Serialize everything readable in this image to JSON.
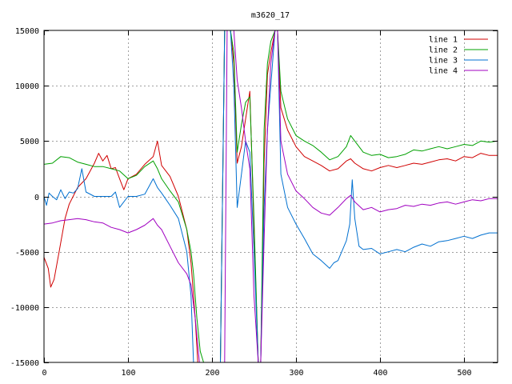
{
  "chart_data": {
    "type": "line",
    "title": "m3620_17",
    "xlim": [
      0,
      540
    ],
    "ylim": [
      -15000,
      15000
    ],
    "xticks": [
      0,
      100,
      200,
      300,
      400,
      500
    ],
    "yticks": [
      -15000,
      -10000,
      -5000,
      0,
      5000,
      10000,
      15000
    ],
    "grid": true,
    "legend_position": "top-right",
    "series": [
      {
        "name": "line 1",
        "color": "#d00000",
        "x": [
          0,
          5,
          8,
          12,
          18,
          25,
          30,
          40,
          50,
          60,
          65,
          70,
          75,
          80,
          85,
          90,
          95,
          100,
          110,
          120,
          130,
          135,
          140,
          150,
          160,
          170,
          175,
          180,
          183,
          186,
          200,
          210,
          215,
          218,
          222,
          226,
          230,
          235,
          240,
          245,
          250,
          255,
          258,
          262,
          266,
          270,
          275,
          278,
          282,
          290,
          300,
          310,
          320,
          330,
          340,
          350,
          360,
          365,
          370,
          380,
          390,
          400,
          410,
          420,
          430,
          440,
          450,
          460,
          470,
          480,
          490,
          500,
          510,
          520,
          530,
          540
        ],
        "y": [
          -5500,
          -6500,
          -8200,
          -7500,
          -5000,
          -2000,
          -700,
          800,
          1600,
          3000,
          3900,
          3200,
          3700,
          2500,
          2600,
          1600,
          600,
          1600,
          2000,
          2900,
          3600,
          5000,
          2800,
          1800,
          0,
          -3000,
          -6000,
          -11000,
          -15000,
          -15000,
          -15000,
          -15000,
          15000,
          15000,
          15000,
          12000,
          3000,
          4500,
          7000,
          9500,
          -3000,
          -15000,
          -15000,
          3000,
          11000,
          13000,
          15000,
          15000,
          8000,
          6000,
          4500,
          3600,
          3200,
          2800,
          2300,
          2500,
          3200,
          3400,
          3000,
          2500,
          2300,
          2600,
          2800,
          2600,
          2800,
          3000,
          2900,
          3100,
          3300,
          3400,
          3200,
          3600,
          3500,
          3900,
          3700,
          3700
        ]
      },
      {
        "name": "line 2",
        "color": "#00a000",
        "x": [
          0,
          10,
          20,
          30,
          40,
          50,
          60,
          70,
          80,
          90,
          100,
          110,
          120,
          130,
          135,
          140,
          150,
          160,
          170,
          175,
          178,
          182,
          186,
          190,
          200,
          205,
          210,
          215,
          218,
          222,
          226,
          230,
          235,
          240,
          245,
          250,
          255,
          258,
          262,
          266,
          270,
          275,
          278,
          282,
          290,
          300,
          310,
          320,
          330,
          340,
          350,
          360,
          365,
          370,
          380,
          390,
          400,
          410,
          420,
          430,
          440,
          450,
          460,
          470,
          480,
          490,
          500,
          510,
          520,
          530,
          540
        ],
        "y": [
          2900,
          3000,
          3600,
          3500,
          3100,
          2900,
          2700,
          2700,
          2500,
          2300,
          1600,
          1900,
          2700,
          3200,
          2500,
          1600,
          500,
          -500,
          -3000,
          -5000,
          -7000,
          -11000,
          -14000,
          -15000,
          -15000,
          -15000,
          -15000,
          15000,
          15000,
          15000,
          13000,
          4000,
          6500,
          8500,
          9000,
          -2000,
          -15000,
          -15000,
          6000,
          12000,
          14000,
          15000,
          15000,
          9500,
          7000,
          5500,
          5000,
          4600,
          4000,
          3300,
          3600,
          4500,
          5500,
          5000,
          4000,
          3700,
          3800,
          3500,
          3600,
          3800,
          4200,
          4100,
          4300,
          4500,
          4300,
          4500,
          4700,
          4600,
          5000,
          4900,
          5000
        ]
      },
      {
        "name": "line 3",
        "color": "#0070d0",
        "x": [
          0,
          3,
          6,
          10,
          15,
          20,
          25,
          30,
          35,
          40,
          45,
          50,
          60,
          70,
          80,
          85,
          90,
          100,
          110,
          120,
          125,
          130,
          135,
          140,
          150,
          160,
          170,
          175,
          178,
          182,
          186,
          195,
          205,
          210,
          215,
          218,
          222,
          226,
          230,
          235,
          240,
          245,
          250,
          255,
          258,
          262,
          266,
          270,
          275,
          278,
          282,
          290,
          300,
          310,
          320,
          330,
          340,
          345,
          350,
          360,
          364,
          367,
          370,
          375,
          380,
          390,
          400,
          410,
          420,
          430,
          440,
          450,
          460,
          470,
          480,
          490,
          500,
          510,
          520,
          530,
          540
        ],
        "y": [
          0,
          -800,
          300,
          0,
          -300,
          600,
          -200,
          400,
          300,
          700,
          2500,
          400,
          0,
          0,
          0,
          400,
          -1000,
          0,
          0,
          200,
          900,
          1600,
          800,
          300,
          -800,
          -2000,
          -5000,
          -9000,
          -15000,
          -15000,
          -15000,
          -15000,
          -15000,
          -15000,
          15000,
          15000,
          15000,
          10000,
          -1000,
          2000,
          5000,
          4000,
          -5000,
          -15000,
          -15000,
          -1000,
          6000,
          10000,
          15000,
          15000,
          2000,
          -1000,
          -2500,
          -3800,
          -5200,
          -5800,
          -6500,
          -6000,
          -5800,
          -4000,
          -2500,
          1500,
          -2000,
          -4500,
          -4800,
          -4700,
          -5200,
          -5000,
          -4800,
          -5000,
          -4600,
          -4300,
          -4500,
          -4100,
          -4000,
          -3800,
          -3600,
          -3800,
          -3500,
          -3300,
          -3300
        ]
      },
      {
        "name": "line 4",
        "color": "#a000c0",
        "x": [
          0,
          10,
          20,
          30,
          40,
          50,
          60,
          70,
          80,
          90,
          100,
          110,
          120,
          130,
          135,
          140,
          150,
          160,
          170,
          175,
          180,
          185,
          190,
          200,
          205,
          210,
          215,
          218,
          222,
          226,
          230,
          235,
          240,
          245,
          250,
          255,
          258,
          262,
          266,
          270,
          275,
          278,
          282,
          290,
          300,
          310,
          320,
          330,
          340,
          350,
          360,
          365,
          370,
          380,
          390,
          400,
          410,
          420,
          430,
          440,
          450,
          460,
          470,
          480,
          490,
          500,
          510,
          520,
          530,
          540
        ],
        "y": [
          -2500,
          -2400,
          -2200,
          -2100,
          -2000,
          -2100,
          -2300,
          -2400,
          -2800,
          -3000,
          -3300,
          -3000,
          -2600,
          -2000,
          -2600,
          -3000,
          -4500,
          -6000,
          -7000,
          -8000,
          -11000,
          -15000,
          -15000,
          -15000,
          -15000,
          -15000,
          -15000,
          15000,
          15000,
          15000,
          10500,
          8000,
          5000,
          2500,
          -9000,
          -15000,
          -15000,
          -4000,
          6000,
          12000,
          15000,
          15000,
          5000,
          2000,
          500,
          -200,
          -1000,
          -1500,
          -1700,
          -1000,
          -200,
          100,
          -500,
          -1200,
          -1000,
          -1400,
          -1200,
          -1100,
          -800,
          -900,
          -700,
          -800,
          -600,
          -500,
          -700,
          -500,
          -300,
          -400,
          -200,
          -200
        ]
      }
    ]
  }
}
